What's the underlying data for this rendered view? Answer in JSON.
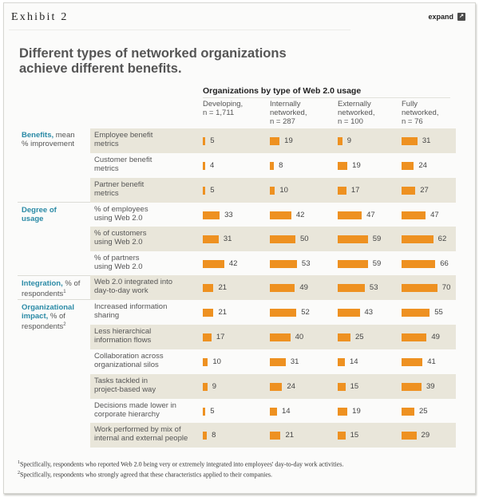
{
  "header": {
    "exhibit_label": "Exhibit 2",
    "expand_label": "expand",
    "expand_icon": "expand-icon"
  },
  "title_line1": "Different types of networked organizations",
  "title_line2": "achieve different benefits.",
  "column_group_title": "Organizations by type of Web 2.0 usage",
  "columns": [
    {
      "line1": "Developing,",
      "line2": "n = 1,711",
      "line3": ""
    },
    {
      "line1": "Internally",
      "line2": "networked,",
      "line3": "n = 287"
    },
    {
      "line1": "Externally",
      "line2": "networked,",
      "line3": "n = 100"
    },
    {
      "line1": "Fully",
      "line2": "networked,",
      "line3": "n = 76"
    }
  ],
  "sections": [
    {
      "bold": "Benefits,",
      "rest1": " mean",
      "rest2": "% improvement",
      "sup": ""
    },
    {
      "bold": "Degree of",
      "rest1": "",
      "rest2": "usage",
      "sup": ""
    },
    {
      "bold": "Integration,",
      "rest1": " % of",
      "rest2": "respondents",
      "sup": "1"
    },
    {
      "bold": "Organizational",
      "rest1": "impact,",
      "rest2": "% of",
      "rest3": "respondents",
      "sup": "2"
    }
  ],
  "accent_color": "#ee9121",
  "label_color": "#2a8aa6",
  "chart_data": {
    "type": "table",
    "title": "Different types of networked organizations achieve different benefits.",
    "column_group": "Organizations by type of Web 2.0 usage",
    "categories": [
      "Developing, n = 1,711",
      "Internally networked, n = 287",
      "Externally networked, n = 100",
      "Fully networked, n = 76"
    ],
    "rows": [
      {
        "section": "Benefits, mean % improvement",
        "line1": "Employee benefit",
        "line2": "metrics",
        "values": [
          5,
          19,
          9,
          31
        ]
      },
      {
        "section": "Benefits, mean % improvement",
        "line1": "Customer benefit",
        "line2": "metrics",
        "values": [
          4,
          8,
          19,
          24
        ]
      },
      {
        "section": "Benefits, mean % improvement",
        "line1": "Partner benefit",
        "line2": "metrics",
        "values": [
          5,
          10,
          17,
          27
        ]
      },
      {
        "section": "Degree of usage",
        "line1": "% of employees",
        "line2": "using Web 2.0",
        "values": [
          33,
          42,
          47,
          47
        ]
      },
      {
        "section": "Degree of usage",
        "line1": "% of customers",
        "line2": "using Web 2.0",
        "values": [
          31,
          50,
          59,
          62
        ]
      },
      {
        "section": "Degree of usage",
        "line1": "% of partners",
        "line2": "using Web 2.0",
        "values": [
          42,
          53,
          59,
          66
        ]
      },
      {
        "section": "Integration, % of respondents",
        "line1": "Web 2.0 integrated into",
        "line2": "day-to-day work",
        "values": [
          21,
          49,
          53,
          70
        ]
      },
      {
        "section": "Organizational impact, % of respondents",
        "line1": "Increased information",
        "line2": "sharing",
        "values": [
          21,
          52,
          43,
          55
        ]
      },
      {
        "section": "Organizational impact, % of respondents",
        "line1": "Less hierarchical",
        "line2": "information flows",
        "values": [
          17,
          40,
          25,
          49
        ]
      },
      {
        "section": "Organizational impact, % of respondents",
        "line1": "Collaboration across",
        "line2": "organizational silos",
        "values": [
          10,
          31,
          14,
          41
        ]
      },
      {
        "section": "Organizational impact, % of respondents",
        "line1": "Tasks tackled in",
        "line2": "project-based way",
        "values": [
          9,
          24,
          15,
          39
        ]
      },
      {
        "section": "Organizational impact, % of respondents",
        "line1": "Decisions made lower in",
        "line2": "corporate hierarchy",
        "values": [
          5,
          14,
          19,
          25
        ]
      },
      {
        "section": "Organizational impact, % of respondents",
        "line1": "Work performed by mix of",
        "line2": "internal and external people",
        "values": [
          8,
          21,
          15,
          29
        ]
      }
    ],
    "shaded_rows": [
      true,
      false,
      true,
      false,
      true,
      false,
      true,
      false,
      true,
      false,
      true,
      false,
      true
    ]
  },
  "footnotes": [
    "Specifically, respondents who reported Web 2.0 being very or extremely integrated into employees' day-to-day work activities.",
    "Specifically, respondents who strongly agreed that these characteristics applied to their companies."
  ],
  "footnote_marks": [
    "1",
    "2"
  ]
}
